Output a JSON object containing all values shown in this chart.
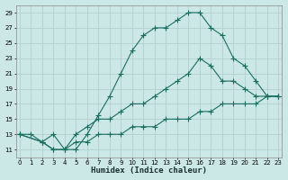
{
  "xlabel": "Humidex (Indice chaleur)",
  "bg_color": "#cce8e6",
  "grid_color": "#b0d0ce",
  "line_color": "#1a6e60",
  "line1_x": [
    0,
    1,
    2,
    3,
    4,
    5,
    6,
    7,
    8,
    9,
    10,
    11,
    12,
    13,
    14,
    15,
    16,
    17,
    18,
    19,
    20,
    21,
    22,
    23
  ],
  "line1_y": [
    13,
    13,
    12,
    13,
    11,
    11,
    13,
    15.5,
    18,
    21,
    24,
    26,
    27,
    27,
    28,
    29,
    29,
    27,
    26,
    23,
    22,
    20,
    18,
    18
  ],
  "line2_x": [
    0,
    2,
    3,
    4,
    5,
    6,
    7,
    8,
    9,
    10,
    11,
    12,
    13,
    14,
    15,
    16,
    17,
    18,
    19,
    20,
    21,
    22,
    23
  ],
  "line2_y": [
    13,
    12,
    11,
    11,
    13,
    14,
    15,
    15,
    16,
    17,
    17,
    18,
    19,
    20,
    21,
    23,
    22,
    20,
    20,
    19,
    18,
    18,
    18
  ],
  "line3_x": [
    0,
    2,
    3,
    4,
    5,
    6,
    7,
    8,
    9,
    10,
    11,
    12,
    13,
    14,
    15,
    16,
    17,
    18,
    19,
    20,
    21,
    22,
    23
  ],
  "line3_y": [
    13,
    12,
    11,
    11,
    12,
    12,
    13,
    13,
    13,
    14,
    14,
    14,
    15,
    15,
    15,
    16,
    16,
    17,
    17,
    17,
    17,
    18,
    18
  ],
  "ylim": [
    10,
    30
  ],
  "xlim": [
    -0.3,
    23.3
  ],
  "yticks": [
    11,
    13,
    15,
    17,
    19,
    21,
    23,
    25,
    27,
    29
  ],
  "xticks": [
    0,
    1,
    2,
    3,
    4,
    5,
    6,
    7,
    8,
    9,
    10,
    11,
    12,
    13,
    14,
    15,
    16,
    17,
    18,
    19,
    20,
    21,
    22,
    23
  ],
  "tick_fontsize": 5.0,
  "xlabel_fontsize": 6.5
}
